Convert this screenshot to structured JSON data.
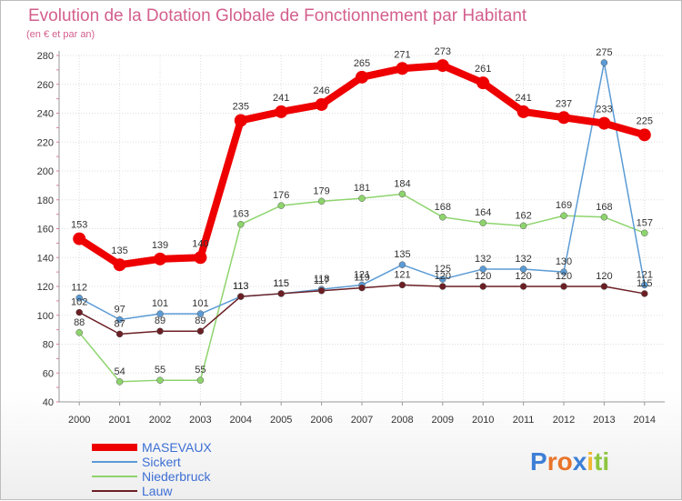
{
  "chart_data": {
    "type": "line",
    "title": "Evolution de la Dotation Globale de Fonctionnement par Habitant",
    "subtitle": "(en € et par an)",
    "categories": [
      "2000",
      "2001",
      "2002",
      "2003",
      "2004",
      "2005",
      "2006",
      "2007",
      "2008",
      "2009",
      "2010",
      "2011",
      "2012",
      "2013",
      "2014"
    ],
    "ylim": [
      40,
      280
    ],
    "yticks": [
      40,
      60,
      80,
      100,
      120,
      140,
      160,
      180,
      200,
      220,
      240,
      260,
      280
    ],
    "grid": true,
    "legend_position": "bottom-left",
    "series": [
      {
        "name": "Niederbruck",
        "color": "#8ed46d",
        "values": [
          88,
          54,
          55,
          55,
          163,
          176,
          179,
          181,
          184,
          168,
          164,
          162,
          169,
          168,
          157
        ]
      },
      {
        "name": "Sickert",
        "color": "#5b9bd5",
        "values": [
          112,
          97,
          101,
          101,
          113,
          115,
          118,
          121,
          135,
          125,
          132,
          132,
          130,
          275,
          121
        ]
      },
      {
        "name": "Lauw",
        "color": "#6b1f24",
        "values": [
          102,
          87,
          89,
          89,
          113,
          115,
          117,
          119,
          121,
          120,
          120,
          120,
          120,
          120,
          115
        ]
      },
      {
        "name": "MASEVAUX",
        "color": "#ee0000",
        "values": [
          153,
          135,
          139,
          140,
          235,
          241,
          246,
          265,
          271,
          273,
          261,
          241,
          237,
          233,
          225
        ]
      }
    ],
    "legend_order": [
      "MASEVAUX",
      "Sickert",
      "Niederbruck",
      "Lauw"
    ]
  },
  "logo": {
    "text": "Proxiti",
    "letters": [
      "P",
      "r",
      "o",
      "x",
      "i",
      "t",
      "i"
    ],
    "colors": [
      "#3d7fd6",
      "#e8742a",
      "#e8742a",
      "#3d7fd6",
      "#f2b632",
      "#8ec63f",
      "#8ec63f"
    ]
  }
}
